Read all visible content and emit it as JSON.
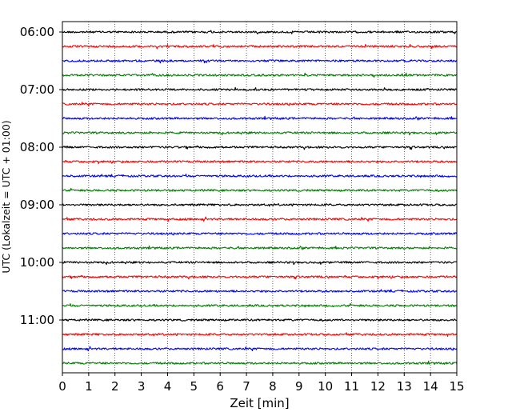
{
  "chart_data": {
    "type": "line",
    "xlabel": "Zeit  [min]",
    "ylabel": "UTC (Lokalzeit = UTC + 01:00)",
    "xlim": [
      0,
      15
    ],
    "x_ticks": [
      "0",
      "1",
      "2",
      "3",
      "4",
      "5",
      "6",
      "7",
      "8",
      "9",
      "10",
      "11",
      "12",
      "13",
      "14",
      "15"
    ],
    "y_ticks": [
      "06:00",
      "07:00",
      "08:00",
      "09:00",
      "10:00",
      "11:00"
    ],
    "y_tick_rows": [
      0,
      4,
      8,
      12,
      16,
      20
    ],
    "trace_interval_min": 15,
    "start_time": "06:00",
    "trace_count": 24,
    "colors": [
      "#000000",
      "#ff0000",
      "#0000ff",
      "#007f00"
    ],
    "grid": "vertical dotted at each minute",
    "series": [
      {
        "start": "06:00",
        "color": "#000000"
      },
      {
        "start": "06:15",
        "color": "#ff0000"
      },
      {
        "start": "06:30",
        "color": "#0000ff"
      },
      {
        "start": "06:45",
        "color": "#007f00"
      },
      {
        "start": "07:00",
        "color": "#000000"
      },
      {
        "start": "07:15",
        "color": "#ff0000"
      },
      {
        "start": "07:30",
        "color": "#0000ff"
      },
      {
        "start": "07:45",
        "color": "#007f00"
      },
      {
        "start": "08:00",
        "color": "#000000"
      },
      {
        "start": "08:15",
        "color": "#ff0000"
      },
      {
        "start": "08:30",
        "color": "#0000ff"
      },
      {
        "start": "08:45",
        "color": "#007f00"
      },
      {
        "start": "09:00",
        "color": "#000000"
      },
      {
        "start": "09:15",
        "color": "#ff0000"
      },
      {
        "start": "09:30",
        "color": "#0000ff"
      },
      {
        "start": "09:45",
        "color": "#007f00"
      },
      {
        "start": "10:00",
        "color": "#000000"
      },
      {
        "start": "10:15",
        "color": "#ff0000"
      },
      {
        "start": "10:30",
        "color": "#0000ff"
      },
      {
        "start": "10:45",
        "color": "#007f00"
      },
      {
        "start": "11:00",
        "color": "#000000"
      },
      {
        "start": "11:15",
        "color": "#ff0000"
      },
      {
        "start": "11:30",
        "color": "#0000ff"
      },
      {
        "start": "11:45",
        "color": "#007f00"
      }
    ]
  }
}
